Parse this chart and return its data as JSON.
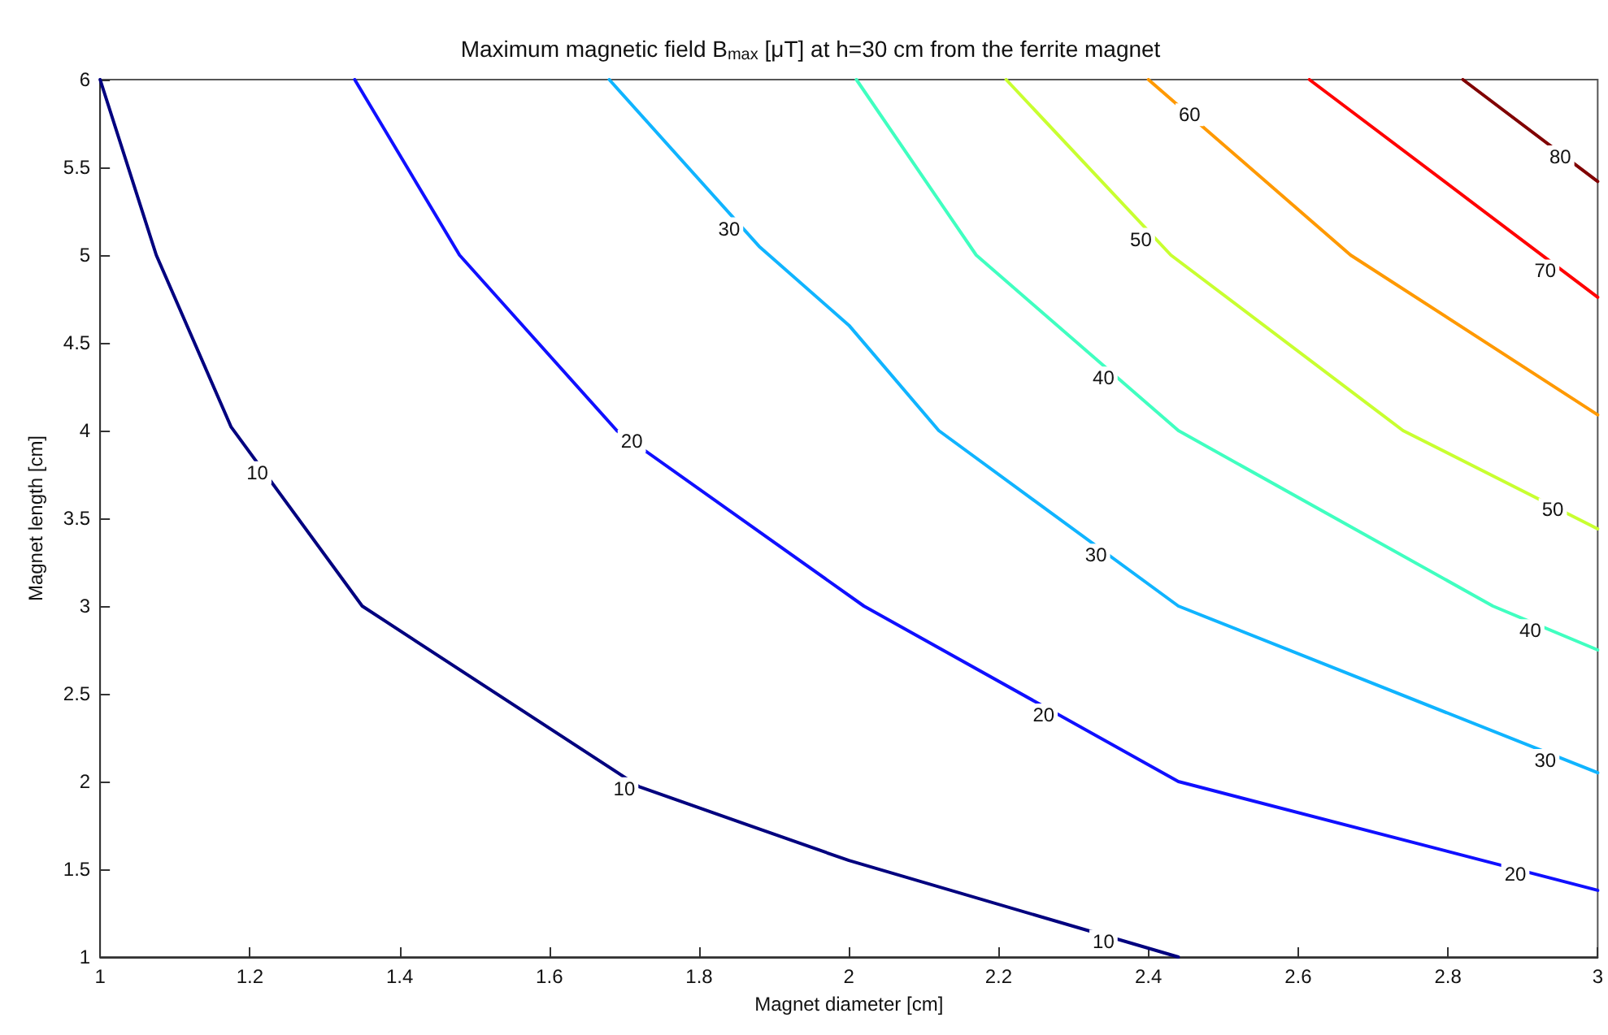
{
  "chart_data": {
    "type": "line",
    "title": "Maximum magnetic field B$_{max}$ [μT] at h=30 cm from the ferrite magnet",
    "xlabel": "Magnet diameter [cm]",
    "ylabel": "Magnet length [cm]",
    "xlim": [
      1,
      3
    ],
    "xticks": [
      1,
      1.2,
      1.4,
      1.6,
      1.8,
      2,
      2.2,
      2.4,
      2.6,
      2.8,
      3
    ],
    "ylim": [
      1,
      6
    ],
    "yticks": [
      1,
      1.5,
      2,
      2.5,
      3,
      3.5,
      4,
      4.5,
      5,
      5.5,
      6
    ],
    "grid": false,
    "marker": "none",
    "line_style": "solid",
    "series": [
      {
        "color": "#00007f",
        "x": [
          1,
          1.075,
          1.175,
          1.35,
          1.72,
          2,
          2.44
        ],
        "values": [
          6,
          5,
          4.02,
          3,
          1.97,
          1.55,
          1
        ]
      },
      {
        "color": "#1010ff",
        "x": [
          1.34,
          1.48,
          1.69,
          2.02,
          2.44,
          3
        ],
        "values": [
          6,
          5,
          4,
          3,
          2,
          1.38
        ]
      },
      {
        "color": "#10b4ff",
        "x": [
          1.68,
          1.88,
          2,
          2.12,
          2.44,
          3
        ],
        "values": [
          6,
          5.05,
          4.6,
          4,
          3,
          2.05
        ]
      },
      {
        "color": "#40ffc0",
        "x": [
          2.01,
          2.17,
          2.44,
          2.86,
          3
        ],
        "values": [
          6,
          5,
          4,
          3,
          2.75
        ]
      },
      {
        "color": "#c8ff30",
        "x": [
          2.21,
          2.43,
          2.74,
          3
        ],
        "values": [
          6,
          5,
          4,
          3.44
        ]
      },
      {
        "color": "#ff9900",
        "x": [
          2.4,
          2.67,
          3
        ],
        "values": [
          6,
          5,
          4.09
        ]
      },
      {
        "color": "#ff0000",
        "x": [
          2.615,
          3
        ],
        "values": [
          6,
          4.76
        ]
      },
      {
        "color": "#800000",
        "x": [
          2.82,
          3
        ],
        "values": [
          6,
          5.42
        ]
      }
    ],
    "annotations": [
      {
        "text": "10",
        "x": 1.21,
        "y": 3.76
      },
      {
        "text": "10",
        "x": 1.7,
        "y": 1.96
      },
      {
        "text": "10",
        "x": 2.34,
        "y": 1.09
      },
      {
        "text": "20",
        "x": 1.71,
        "y": 3.94
      },
      {
        "text": "20",
        "x": 2.26,
        "y": 2.38
      },
      {
        "text": "20",
        "x": 2.89,
        "y": 1.47
      },
      {
        "text": "30",
        "x": 1.84,
        "y": 5.15
      },
      {
        "text": "30",
        "x": 2.33,
        "y": 3.29
      },
      {
        "text": "30",
        "x": 2.93,
        "y": 2.12
      },
      {
        "text": "40",
        "x": 2.34,
        "y": 4.3
      },
      {
        "text": "40",
        "x": 2.91,
        "y": 2.86
      },
      {
        "text": "50",
        "x": 2.39,
        "y": 5.09
      },
      {
        "text": "50",
        "x": 2.94,
        "y": 3.55
      },
      {
        "text": "60",
        "x": 2.455,
        "y": 5.8
      },
      {
        "text": "70",
        "x": 2.93,
        "y": 4.91
      },
      {
        "text": "80",
        "x": 2.95,
        "y": 5.56
      }
    ]
  }
}
